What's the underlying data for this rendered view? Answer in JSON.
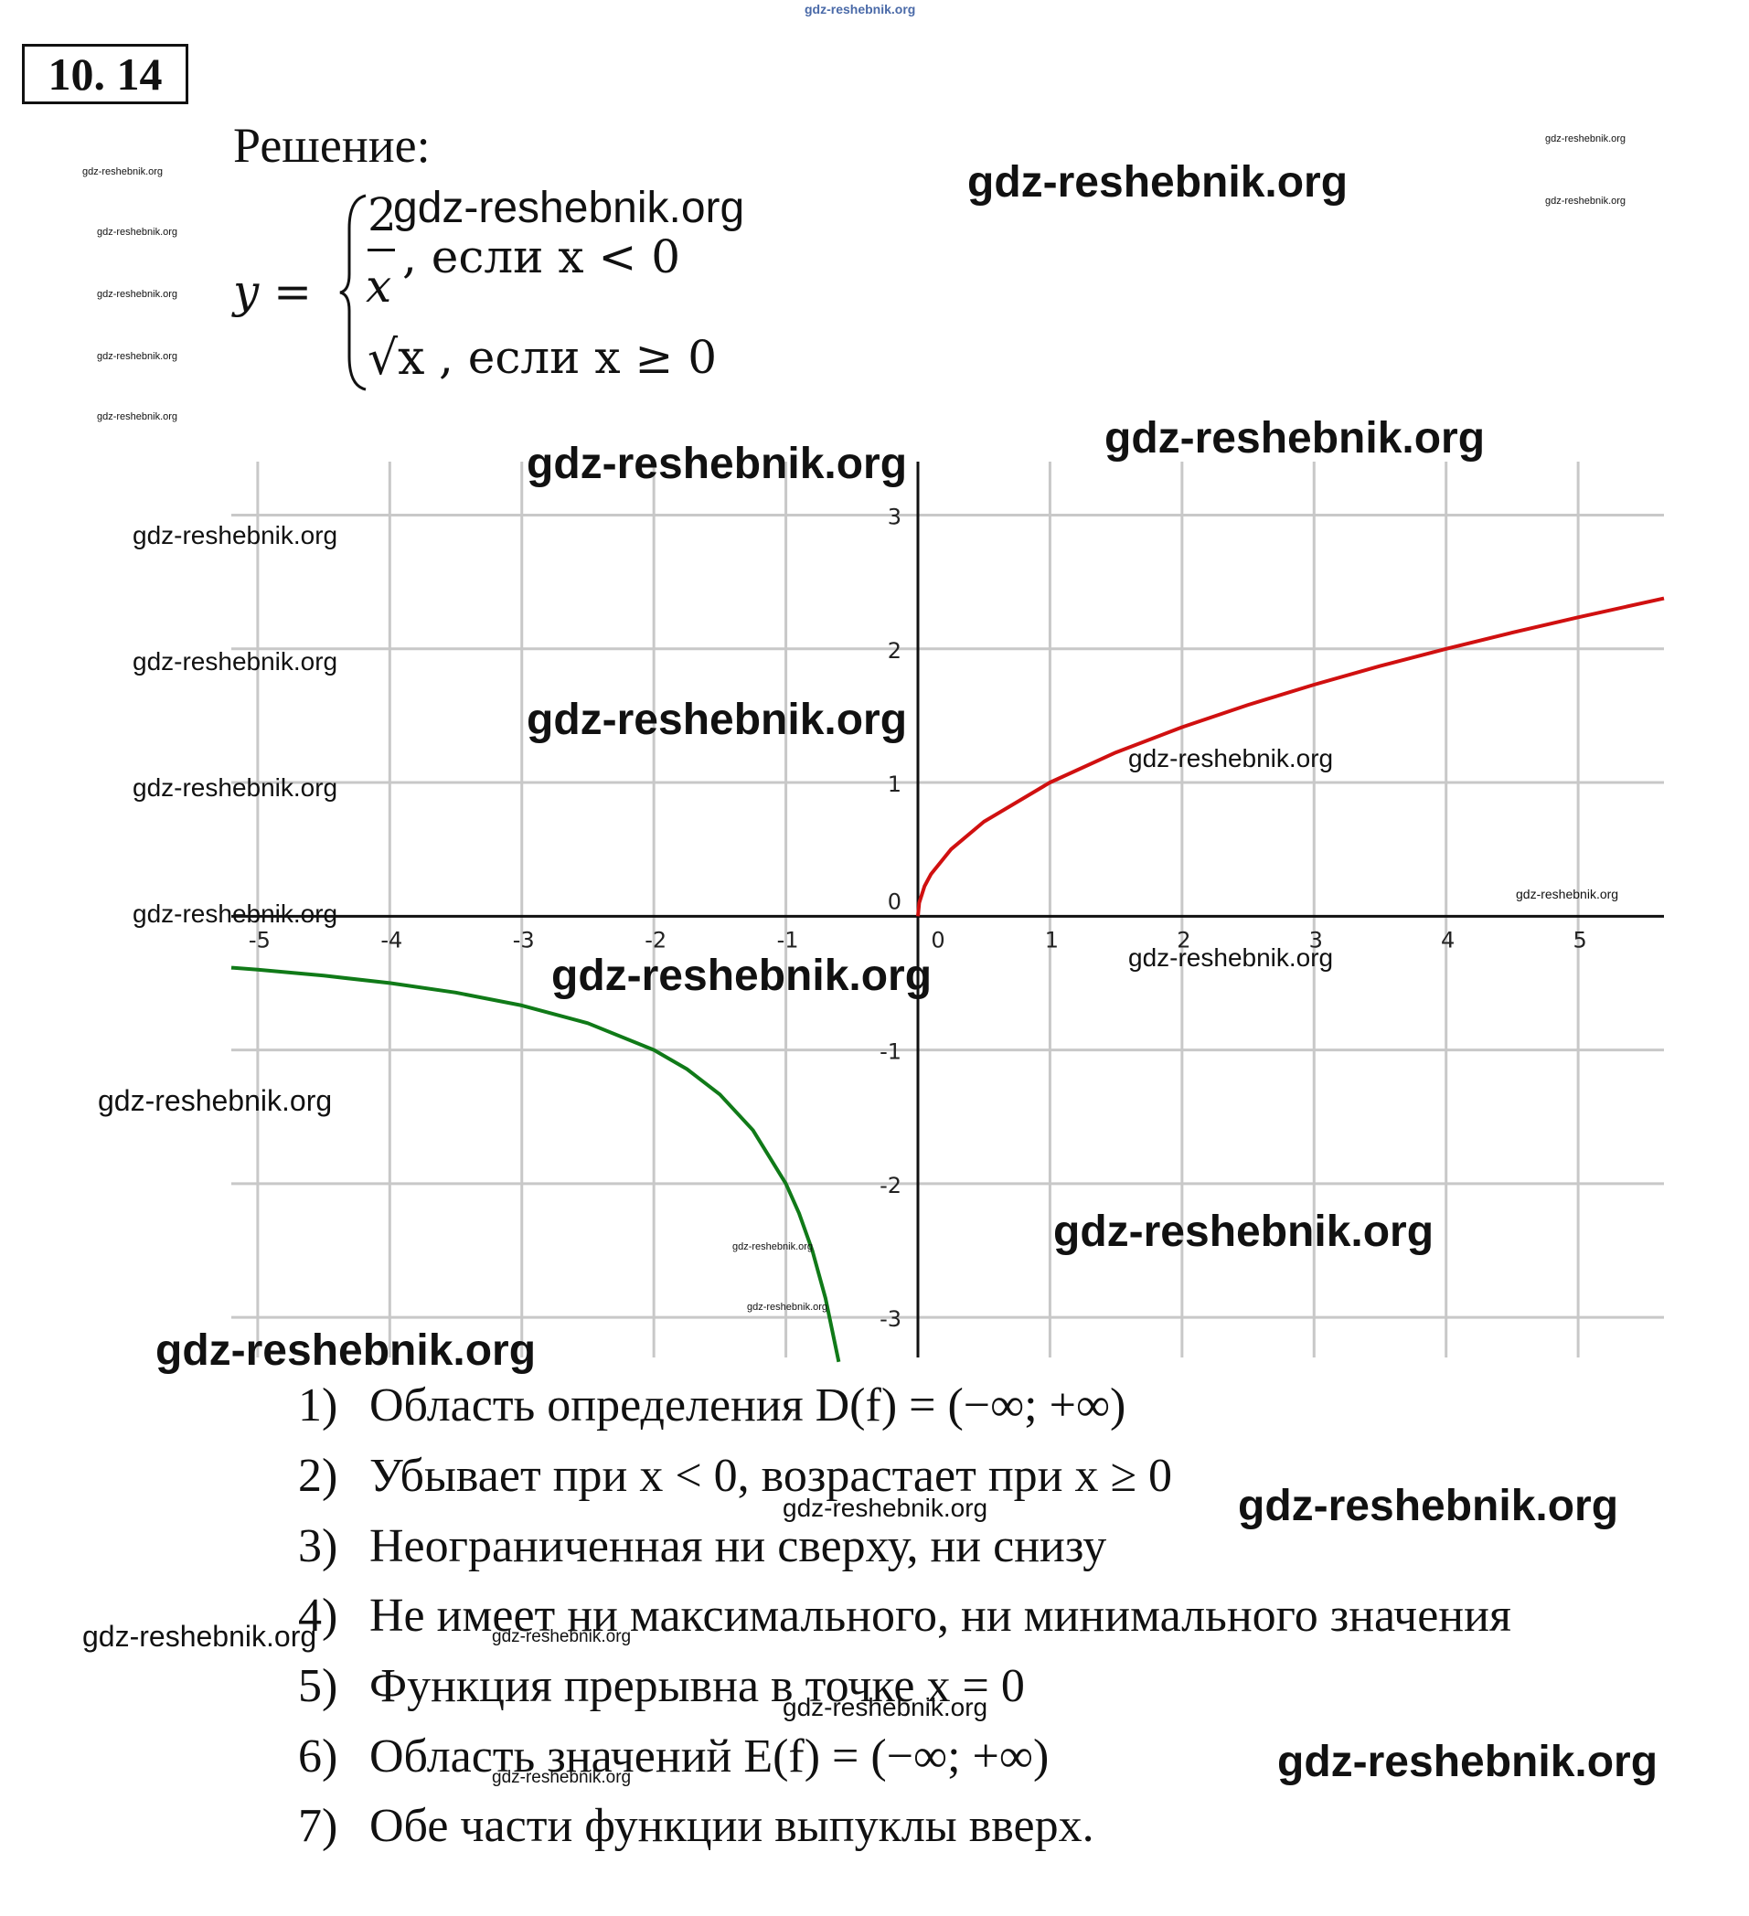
{
  "header": {
    "site_top": "gdz-reshebnik.org",
    "problem_number": "10. 14",
    "solution_label": "Решение:"
  },
  "formula": {
    "lhs": "y =",
    "case1_numerator": "2",
    "case1_denominator": "x",
    "case1_condition": ", если x < 0",
    "case2_expr": "√x",
    "case2_condition": ", если x ≥ 0"
  },
  "chart_data": {
    "type": "line",
    "xlim": [
      -5.2,
      5.65
    ],
    "ylim": [
      -3.3,
      3.4
    ],
    "x_ticks": [
      -5,
      -4,
      -3,
      -2,
      -1,
      0,
      1,
      2,
      3,
      4,
      5
    ],
    "y_ticks": [
      -3,
      -2,
      -1,
      0,
      1,
      2,
      3
    ],
    "x_tick_labels": [
      "-5",
      "-4",
      "-3",
      "-2",
      "-1",
      "0",
      "1",
      "2",
      "3",
      "4",
      "5"
    ],
    "y_tick_labels": [
      "-3",
      "-2",
      "-1",
      "0",
      "1",
      "2",
      "3"
    ],
    "grid": true,
    "series": [
      {
        "color": "#d01010",
        "x": [
          0,
          0.01,
          0.05,
          0.1,
          0.25,
          0.5,
          1,
          1.5,
          2,
          2.5,
          3,
          3.5,
          4,
          4.5,
          5,
          5.65
        ],
        "y": [
          0,
          0.1,
          0.224,
          0.316,
          0.5,
          0.707,
          1,
          1.225,
          1.414,
          1.581,
          1.732,
          1.871,
          2,
          2.121,
          2.236,
          2.377
        ]
      },
      {
        "color": "#107a18",
        "x": [
          -5.2,
          -5,
          -4.5,
          -4,
          -3.5,
          -3,
          -2.5,
          -2,
          -1.75,
          -1.5,
          -1.25,
          -1,
          -0.9,
          -0.8,
          -0.7,
          -0.6
        ],
        "y": [
          -0.385,
          -0.4,
          -0.444,
          -0.5,
          -0.571,
          -0.667,
          -0.8,
          -1,
          -1.143,
          -1.333,
          -1.6,
          -2,
          -2.222,
          -2.5,
          -2.857,
          -3.333
        ]
      }
    ]
  },
  "properties": [
    {
      "num": "1)",
      "text": "Область определения D(f) = (−∞; +∞)"
    },
    {
      "num": "2)",
      "text": "Убывает при x < 0, возрастает при x ≥ 0"
    },
    {
      "num": "3)",
      "text": "Неограниченная ни сверху, ни снизу"
    },
    {
      "num": "4)",
      "text": "Не имеет ни максимального, ни минимального значения"
    },
    {
      "num": "5)",
      "text": "Функция прерывна в точке x = 0"
    },
    {
      "num": "6)",
      "text": "Область значений E(f) = (−∞; +∞)"
    },
    {
      "num": "7)",
      "text": "Обе части функции выпуклы вверх."
    }
  ],
  "watermark": "gdz-reshebnik.org"
}
